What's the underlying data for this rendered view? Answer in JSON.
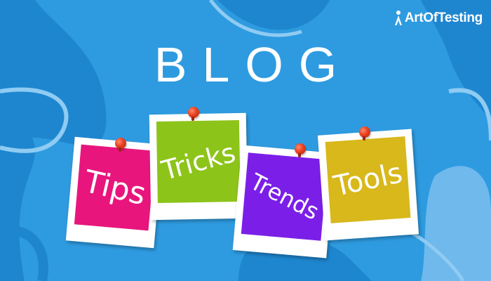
{
  "brand": {
    "logo_text": "ArtOfTesting"
  },
  "headline": {
    "text": "BLOG"
  },
  "cards": {
    "tips": {
      "label": "Tips",
      "color": "#E8157D"
    },
    "tricks": {
      "label": "Tricks",
      "color": "#8DC41A"
    },
    "trends": {
      "label": "Trends",
      "color": "#7B1FE8"
    },
    "tools": {
      "label": "Tools",
      "color": "#D8B81A"
    }
  },
  "colors": {
    "background": "#2E9BE0",
    "blob_dark": "#1E86CF",
    "blob_light": "#8FCBF2",
    "pin": "#E8401F"
  },
  "icons": {
    "logo_mark": "pin-person-icon",
    "pushpin": "pushpin-icon"
  }
}
